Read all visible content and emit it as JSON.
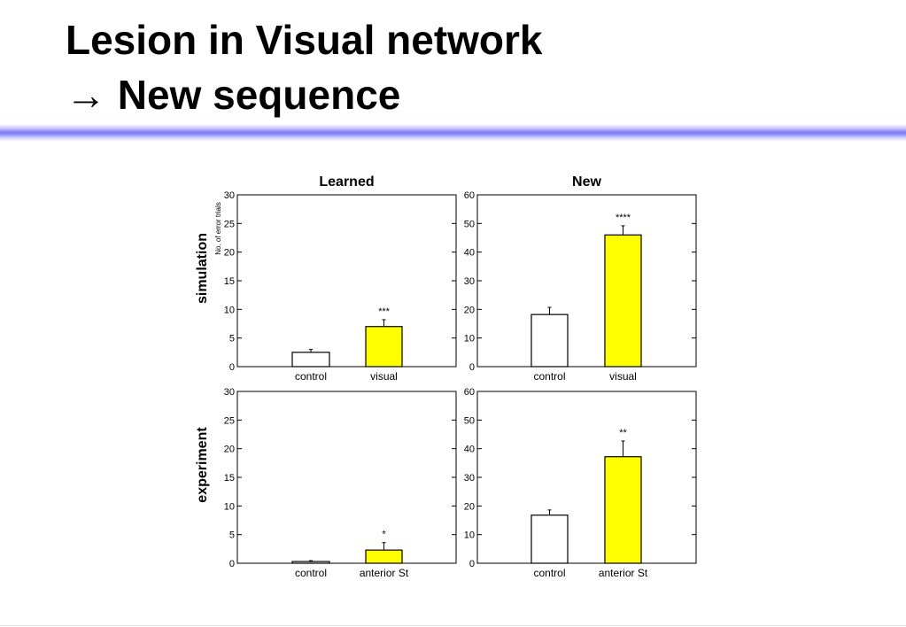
{
  "slide": {
    "title_line1": "Lesion in Visual network",
    "title_line2": "→ New sequence"
  },
  "chart_data": [
    {
      "type": "bar",
      "column_title": "Learned",
      "row_label": "simulation",
      "ylabel": "No. of error trials",
      "categories": [
        "control",
        "visual"
      ],
      "values": [
        2.5,
        7.0
      ],
      "errors": [
        0.5,
        1.2
      ],
      "significance": [
        "",
        "***"
      ],
      "colors": [
        "#ffffff",
        "#ffff00"
      ],
      "ylim": [
        0,
        30
      ],
      "yticks": [
        0,
        5,
        10,
        15,
        20,
        25,
        30
      ]
    },
    {
      "type": "bar",
      "column_title": "New",
      "row_label": "",
      "ylabel": "",
      "categories": [
        "control",
        "visual"
      ],
      "values": [
        18.2,
        46.0
      ],
      "errors": [
        2.5,
        3.2
      ],
      "significance": [
        "",
        "****"
      ],
      "colors": [
        "#ffffff",
        "#ffff00"
      ],
      "ylim": [
        0,
        60
      ],
      "yticks": [
        0,
        10,
        20,
        30,
        40,
        50,
        60
      ]
    },
    {
      "type": "bar",
      "column_title": "",
      "row_label": "experiment",
      "ylabel": "",
      "categories": [
        "control",
        "anterior St"
      ],
      "values": [
        0.3,
        2.3
      ],
      "errors": [
        0.15,
        1.3
      ],
      "significance": [
        "",
        "*"
      ],
      "colors": [
        "#ffffff",
        "#ffff00"
      ],
      "ylim": [
        0,
        30
      ],
      "yticks": [
        0,
        5,
        10,
        15,
        20,
        25,
        30
      ]
    },
    {
      "type": "bar",
      "column_title": "",
      "row_label": "",
      "ylabel": "",
      "categories": [
        "control",
        "anterior St"
      ],
      "values": [
        16.8,
        37.2
      ],
      "errors": [
        1.8,
        5.5
      ],
      "significance": [
        "",
        "**"
      ],
      "colors": [
        "#ffffff",
        "#ffff00"
      ],
      "ylim": [
        0,
        60
      ],
      "yticks": [
        0,
        10,
        20,
        30,
        40,
        50,
        60
      ]
    }
  ]
}
